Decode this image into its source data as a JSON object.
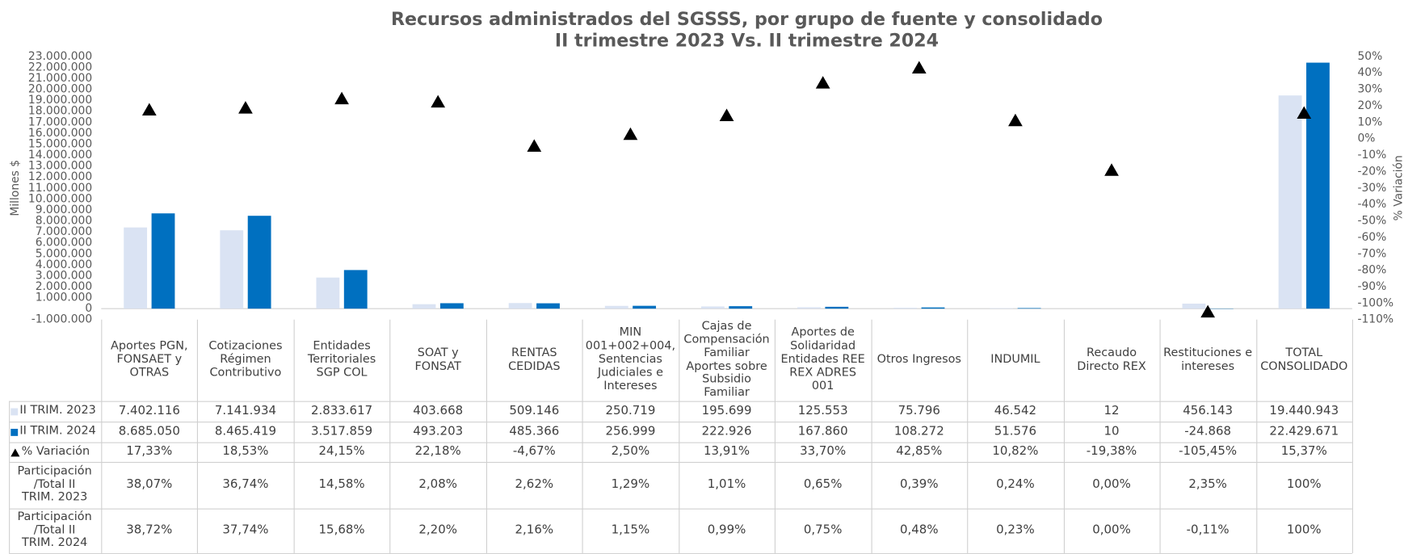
{
  "chart_data": {
    "type": "bar",
    "title": "Recursos administrados del SGSSS, por grupo de fuente y consolidado",
    "subtitle": "II trimestre 2023 Vs. II trimestre 2024",
    "y_label": "Millones $",
    "y2_label": "% Variación",
    "categories": [
      "Aportes PGN, FONSAET y OTRAS",
      "Cotizaciones Régimen Contributivo",
      "Entidades Territoriales SGP COL",
      "SOAT y FONSAT",
      "RENTAS CEDIDAS",
      "MIN 001+002+004, Sentencias Judiciales e Intereses",
      "Cajas de Compensación Familiar Aportes sobre Subsidio Familiar",
      "Aportes de Solidaridad Entidades REE REX ADRES 001",
      "Otros Ingresos",
      "INDUMIL",
      "Recaudo Directo REX",
      "Restituciones e intereses",
      "TOTAL CONSOLIDADO"
    ],
    "series": [
      {
        "name": "II TRIM. 2023",
        "color": "#dae3f3",
        "marker": "square",
        "values": [
          7402116,
          7141934,
          2833617,
          403668,
          509146,
          250719,
          195699,
          125553,
          75796,
          46542,
          12,
          456143,
          19440943
        ],
        "value_labels": [
          "7.402.116",
          "7.141.934",
          "2.833.617",
          "403.668",
          "509.146",
          "250.719",
          "195.699",
          "125.553",
          "75.796",
          "46.542",
          "12",
          "456.143",
          "19.440.943"
        ]
      },
      {
        "name": "II TRIM. 2024",
        "color": "#0070c0",
        "marker": "square",
        "values": [
          8685050,
          8465419,
          3517859,
          493203,
          485366,
          256999,
          222926,
          167860,
          108272,
          51576,
          10,
          -24868,
          22429671
        ],
        "value_labels": [
          "8.685.050",
          "8.465.419",
          "3.517.859",
          "493.203",
          "485.366",
          "256.999",
          "222.926",
          "167.860",
          "108.272",
          "51.576",
          "10",
          "-24.868",
          "22.429.671"
        ]
      },
      {
        "name": "% Variación",
        "color": "#000000",
        "marker": "triangle",
        "axis": "y2",
        "values": [
          17.33,
          18.53,
          24.15,
          22.18,
          -4.67,
          2.5,
          13.91,
          33.7,
          42.85,
          10.82,
          -19.38,
          -105.45,
          15.37
        ],
        "value_labels": [
          "17,33%",
          "18,53%",
          "24,15%",
          "22,18%",
          "-4,67%",
          "2,50%",
          "13,91%",
          "33,70%",
          "42,85%",
          "10,82%",
          "-19,38%",
          "-105,45%",
          "15,37%"
        ]
      }
    ],
    "table_rows": [
      {
        "name": "Participación /Total II TRIM. 2023",
        "values": [
          38.07,
          36.74,
          14.58,
          2.08,
          2.62,
          1.29,
          1.01,
          0.65,
          0.39,
          0.24,
          0.0,
          2.35,
          100
        ],
        "value_labels": [
          "38,07%",
          "36,74%",
          "14,58%",
          "2,08%",
          "2,62%",
          "1,29%",
          "1,01%",
          "0,65%",
          "0,39%",
          "0,24%",
          "0,00%",
          "2,35%",
          "100%"
        ]
      },
      {
        "name": "Participación /Total II TRIM. 2024",
        "values": [
          38.72,
          37.74,
          15.68,
          2.2,
          2.16,
          1.15,
          0.99,
          0.75,
          0.48,
          0.23,
          0.0,
          -0.11,
          100
        ],
        "value_labels": [
          "38,72%",
          "37,74%",
          "15,68%",
          "2,20%",
          "2,16%",
          "1,15%",
          "0,99%",
          "0,75%",
          "0,48%",
          "0,23%",
          "0,00%",
          "-0,11%",
          "100%"
        ]
      }
    ],
    "ylim": [
      -1000000,
      23000000
    ],
    "yticks": [
      {
        "value": -1000000,
        "label": "-1.000.000"
      },
      {
        "value": 0,
        "label": "0"
      },
      {
        "value": 1000000,
        "label": "1.000.000"
      },
      {
        "value": 2000000,
        "label": "2.000.000"
      },
      {
        "value": 3000000,
        "label": "3.000.000"
      },
      {
        "value": 4000000,
        "label": "4.000.000"
      },
      {
        "value": 5000000,
        "label": "5.000.000"
      },
      {
        "value": 6000000,
        "label": "6.000.000"
      },
      {
        "value": 7000000,
        "label": "7.000.000"
      },
      {
        "value": 8000000,
        "label": "8.000.000"
      },
      {
        "value": 9000000,
        "label": "9.000.000"
      },
      {
        "value": 10000000,
        "label": "10.000.000"
      },
      {
        "value": 11000000,
        "label": "11.000.000"
      },
      {
        "value": 12000000,
        "label": "12.000.000"
      },
      {
        "value": 13000000,
        "label": "13.000.000"
      },
      {
        "value": 14000000,
        "label": "14.000.000"
      },
      {
        "value": 15000000,
        "label": "15.000.000"
      },
      {
        "value": 16000000,
        "label": "16.000.000"
      },
      {
        "value": 17000000,
        "label": "17.000.000"
      },
      {
        "value": 18000000,
        "label": "18.000.000"
      },
      {
        "value": 19000000,
        "label": "19.000.000"
      },
      {
        "value": 20000000,
        "label": "20.000.000"
      },
      {
        "value": 21000000,
        "label": "21.000.000"
      },
      {
        "value": 22000000,
        "label": "22.000.000"
      },
      {
        "value": 23000000,
        "label": "23.000.000"
      }
    ],
    "y2lim": [
      -110,
      50
    ],
    "y2ticks": [
      {
        "value": -110,
        "label": "-110%"
      },
      {
        "value": -100,
        "label": "-100%"
      },
      {
        "value": -90,
        "label": "-90%"
      },
      {
        "value": -80,
        "label": "-80%"
      },
      {
        "value": -70,
        "label": "-70%"
      },
      {
        "value": -60,
        "label": "-60%"
      },
      {
        "value": -50,
        "label": "-50%"
      },
      {
        "value": -40,
        "label": "-40%"
      },
      {
        "value": -30,
        "label": "-30%"
      },
      {
        "value": -20,
        "label": "-20%"
      },
      {
        "value": -10,
        "label": "-10%"
      },
      {
        "value": 0,
        "label": "0%"
      },
      {
        "value": 10,
        "label": "10%"
      },
      {
        "value": 20,
        "label": "20%"
      },
      {
        "value": 30,
        "label": "30%"
      },
      {
        "value": 40,
        "label": "40%"
      },
      {
        "value": 50,
        "label": "50%"
      }
    ],
    "grid": false
  }
}
